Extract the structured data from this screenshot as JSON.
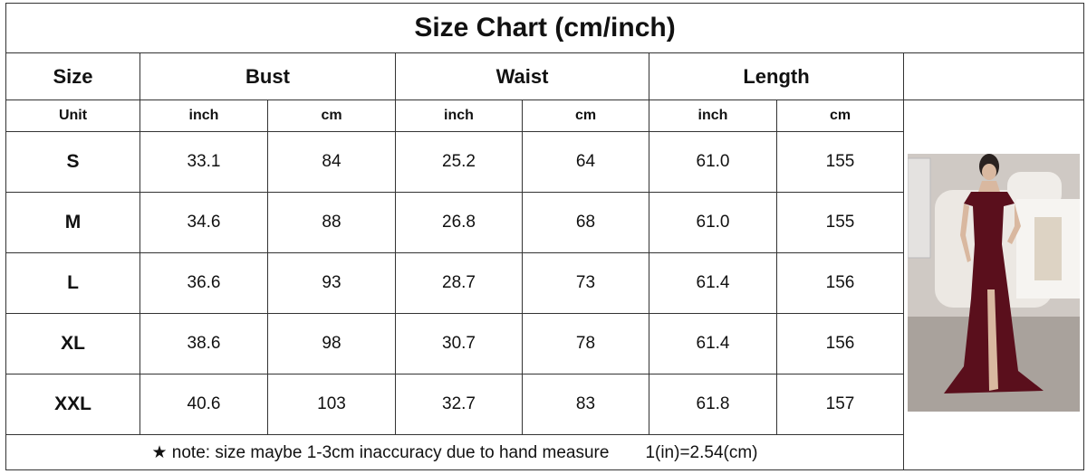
{
  "title": "Size Chart (cm/inch)",
  "headers": [
    "Size",
    "Bust",
    "Waist",
    "Length"
  ],
  "unit_row": [
    "Unit",
    "inch",
    "cm",
    "inch",
    "cm",
    "inch",
    "cm"
  ],
  "rows": [
    [
      "S",
      "33.1",
      "84",
      "25.2",
      "64",
      "61.0",
      "155"
    ],
    [
      "M",
      "34.6",
      "88",
      "26.8",
      "68",
      "61.0",
      "155"
    ],
    [
      "L",
      "36.6",
      "93",
      "28.7",
      "73",
      "61.4",
      "156"
    ],
    [
      "XL",
      "38.6",
      "98",
      "30.7",
      "78",
      "61.4",
      "156"
    ],
    [
      "XXL",
      "40.6",
      "103",
      "32.7",
      "83",
      "61.8",
      "157"
    ]
  ],
  "note": "★ note: size maybe 1-3cm inaccuracy due to hand measure",
  "conversion": "1(in)=2.54(cm)"
}
